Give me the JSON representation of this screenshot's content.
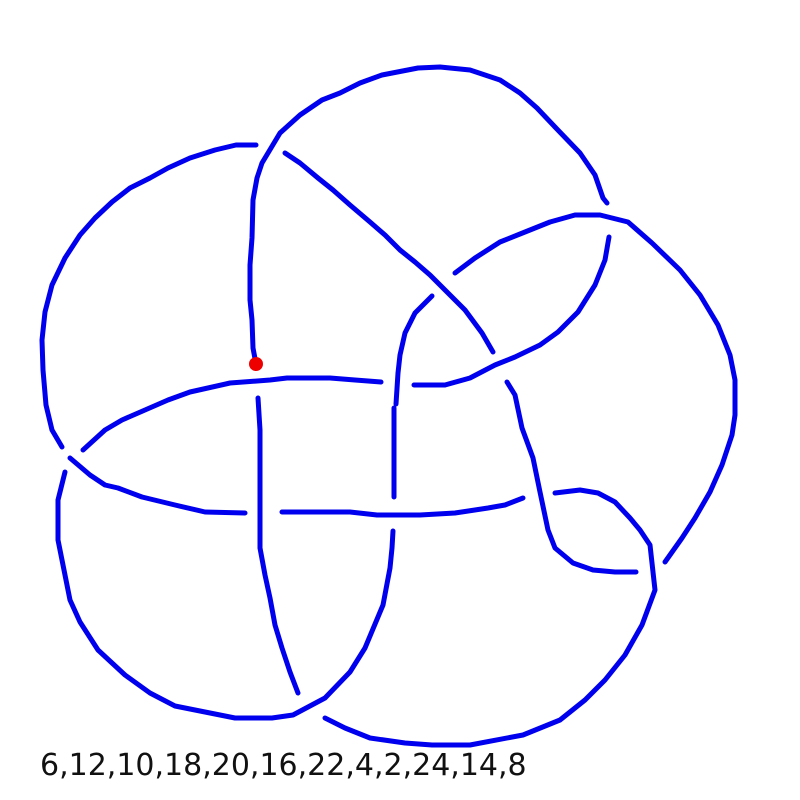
{
  "diagram": {
    "type": "knot-diagram",
    "strand_color": "#0000ee",
    "basepoint_color": "#ee0000",
    "notation": "6,12,10,18,20,16,22,4,2,24,14,8"
  }
}
